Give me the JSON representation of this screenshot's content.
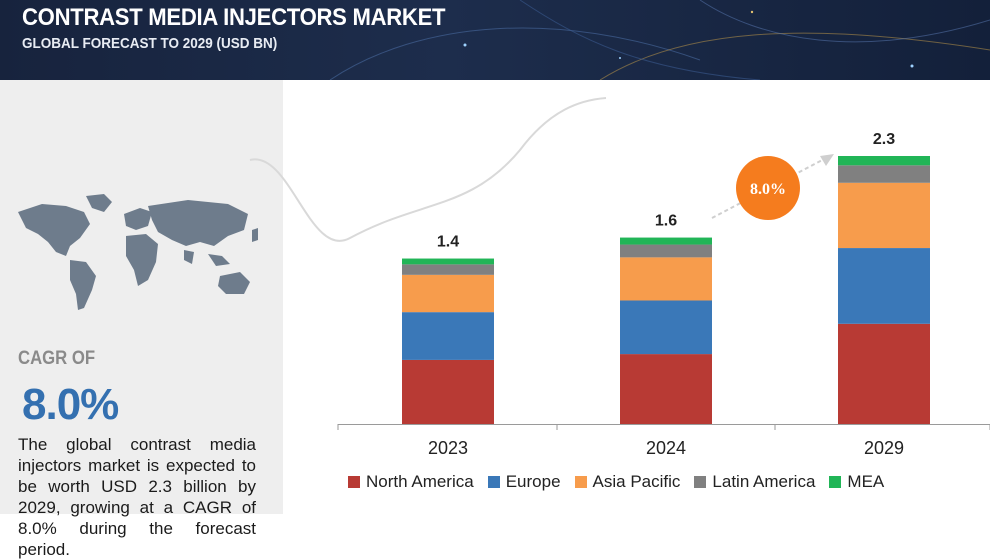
{
  "header": {
    "title": "CONTRAST MEDIA INJECTORS MARKET",
    "subtitle": "GLOBAL FORECAST TO 2029 (USD BN)"
  },
  "summary": {
    "cagr_label": "CAGR OF",
    "cagr_value": "8.0%",
    "description": "The global contrast media injectors market is expected to be worth USD 2.3 billion by 2029, growing at a CAGR of 8.0% during the forecast period."
  },
  "chart_data": {
    "type": "bar",
    "stacked": true,
    "categories": [
      "2023",
      "2024",
      "2029"
    ],
    "totals": [
      1.4,
      1.6,
      2.3
    ],
    "totals_labels": [
      "1.4",
      "1.6",
      "2.3"
    ],
    "series": [
      {
        "name": "North America",
        "color": "#b83a34",
        "values": [
          0.55,
          0.6,
          0.86
        ]
      },
      {
        "name": "Europe",
        "color": "#3a78b8",
        "values": [
          0.41,
          0.46,
          0.65
        ]
      },
      {
        "name": "Asia Pacific",
        "color": "#f79c4c",
        "values": [
          0.32,
          0.37,
          0.56
        ]
      },
      {
        "name": "Latin America",
        "color": "#808080",
        "values": [
          0.09,
          0.11,
          0.15
        ]
      },
      {
        "name": "MEA",
        "color": "#21b557",
        "values": [
          0.05,
          0.06,
          0.08
        ]
      }
    ],
    "ylim": [
      0,
      2.3
    ],
    "annotation": "8.0%",
    "annotation_color": "#f57c1e",
    "grid": false,
    "legend_position": "bottom"
  }
}
